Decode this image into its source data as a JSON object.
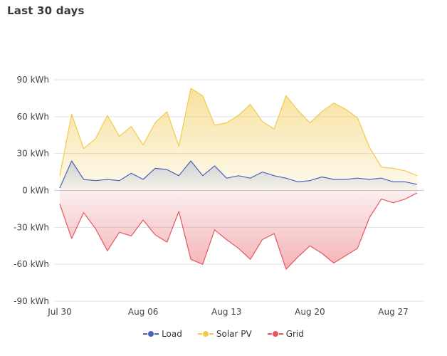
{
  "card": {
    "title": "Last 30 days"
  },
  "chart_data": {
    "type": "area",
    "title": "Last 30 days",
    "xlabel": "",
    "ylabel": "",
    "unit": "kWh",
    "x": [
      "Jul 30",
      "Jul 31",
      "Aug 01",
      "Aug 02",
      "Aug 03",
      "Aug 04",
      "Aug 05",
      "Aug 06",
      "Aug 07",
      "Aug 08",
      "Aug 09",
      "Aug 10",
      "Aug 11",
      "Aug 12",
      "Aug 13",
      "Aug 14",
      "Aug 15",
      "Aug 16",
      "Aug 17",
      "Aug 18",
      "Aug 19",
      "Aug 20",
      "Aug 21",
      "Aug 22",
      "Aug 23",
      "Aug 24",
      "Aug 25",
      "Aug 26",
      "Aug 27",
      "Aug 28",
      "Aug 29"
    ],
    "x_ticks": [
      "Jul 30",
      "Aug 06",
      "Aug 13",
      "Aug 20",
      "Aug 27"
    ],
    "x_tick_indices": [
      0,
      7,
      14,
      21,
      28
    ],
    "y_ticks": [
      "90 kWh",
      "60 kWh",
      "30 kWh",
      "0 kWh",
      "-30 kWh",
      "-60 kWh",
      "-90 kWh"
    ],
    "y_tick_values": [
      90,
      60,
      30,
      0,
      -30,
      -60,
      -90
    ],
    "ylim": [
      -90,
      90
    ],
    "grid": true,
    "legend_position": "bottom",
    "series": [
      {
        "name": "Load",
        "color": "#4a63b8",
        "values": [
          2,
          24,
          9,
          8,
          9,
          8,
          14,
          9,
          18,
          17,
          12,
          24,
          12,
          20,
          10,
          12,
          10,
          15,
          12,
          10,
          7,
          8,
          11,
          9,
          9,
          10,
          9,
          10,
          7,
          7,
          5
        ]
      },
      {
        "name": "Solar PV",
        "color": "#f2c94c",
        "values": [
          12,
          62,
          34,
          42,
          61,
          44,
          52,
          37,
          55,
          64,
          36,
          83,
          77,
          53,
          55,
          61,
          70,
          56,
          50,
          77,
          65,
          55,
          64,
          71,
          66,
          59,
          35,
          19,
          18,
          16,
          12
        ]
      },
      {
        "name": "Grid",
        "color": "#e5575f",
        "values": [
          -11,
          -39,
          -18,
          -31,
          -49,
          -34,
          -37,
          -24,
          -36,
          -42,
          -17,
          -56,
          -60,
          -32,
          -40,
          -47,
          -56,
          -40,
          -35,
          -64,
          -54,
          -45,
          -51,
          -59,
          -53,
          -47,
          -22,
          -7,
          -10,
          -7,
          -2
        ]
      }
    ]
  }
}
